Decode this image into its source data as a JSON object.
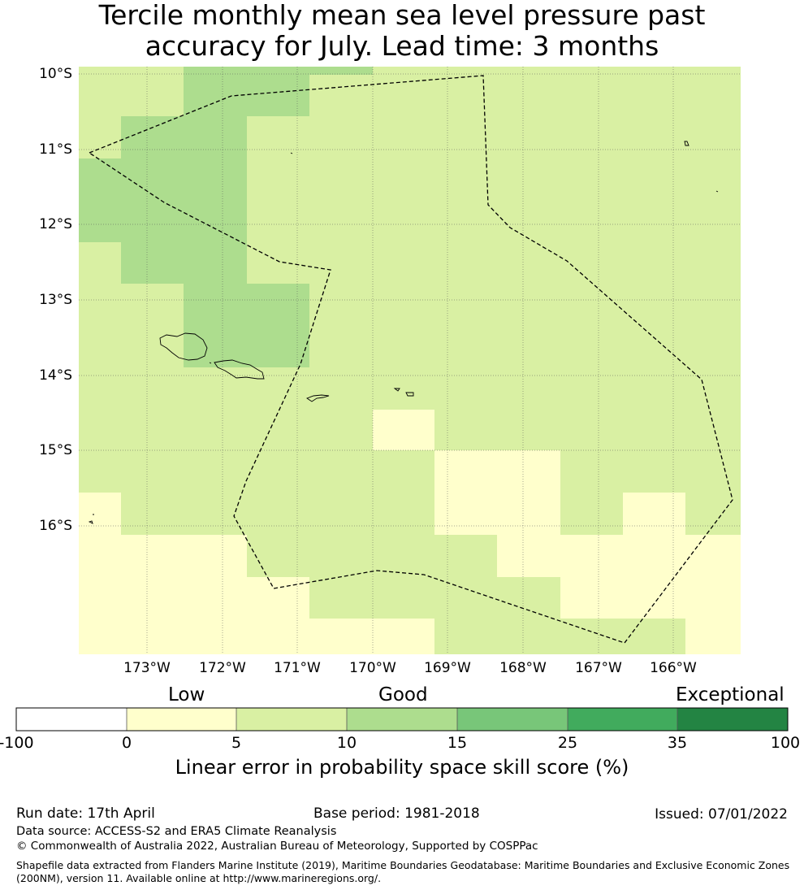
{
  "title": {
    "line1": "Tercile monthly mean sea level pressure past",
    "line2": "accuracy for July. Lead time: 3 months"
  },
  "map": {
    "lat_labels": [
      "10°S",
      "11°S",
      "12°S",
      "13°S",
      "14°S",
      "15°S",
      "16°S"
    ],
    "lon_labels": [
      "173°W",
      "172°W",
      "171°W",
      "170°W",
      "169°W",
      "168°W",
      "167°W",
      "166°W"
    ],
    "skill_grid": {
      "description_units": "skill score %",
      "class_colors": {
        "0-5": "#ffffcc",
        "5-10": "#d9f0a3",
        "10-15": "#addd8e",
        "15-25": "#78c679",
        "25-35": "#41ab5d",
        "35-100": "#238443"
      }
    },
    "eez_line_style": "dashed black"
  },
  "colorbar": {
    "categories": [
      "Low",
      "Good",
      "Exceptional"
    ],
    "ticks": [
      "-100",
      "0",
      "5",
      "10",
      "15",
      "25",
      "35",
      "100"
    ],
    "colors": [
      "#ffffff",
      "#ffffcc",
      "#d9f0a3",
      "#addd8e",
      "#78c679",
      "#41ab5d",
      "#238443"
    ],
    "label": "Linear error in probability space skill score (%)"
  },
  "footer": {
    "run_date": "Run date: 17th April",
    "base_period": "Base period: 1981-2018",
    "issued": "Issued: 07/01/2022",
    "data_source": "Data source: ACCESS-S2 and ERA5 Climate Reanalysis",
    "copyright": "© Commonwealth of Australia 2022, Australian Bureau of Meteorology, Supported by COSPPac",
    "shapefile_line1": "Shapefile data extracted from Flanders Marine Institute (2019), Maritime Boundaries Geodatabase: Maritime Boundaries and Exclusive Economic Zones",
    "shapefile_line2": "(200NM), version 11. Available online at http://www.marineregions.org/."
  }
}
